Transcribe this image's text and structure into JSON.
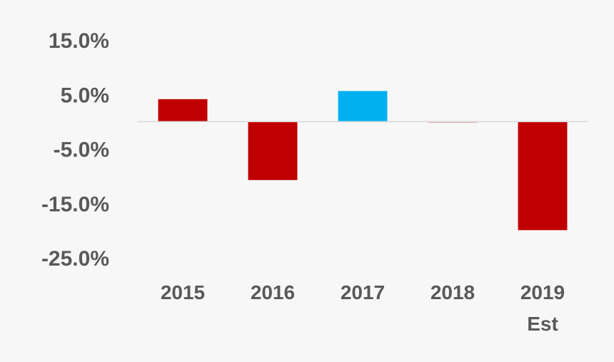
{
  "chart_data": {
    "type": "bar",
    "title": "",
    "xlabel": "",
    "ylabel": "",
    "categories": [
      [
        "2015"
      ],
      [
        "2016"
      ],
      [
        "2017"
      ],
      [
        "2018"
      ],
      [
        "2019",
        "Est"
      ]
    ],
    "values": [
      4.2,
      -10.8,
      5.7,
      -0.2,
      -20.0
    ],
    "bar_colors": [
      "#c00000",
      "#c00000",
      "#00b0f0",
      "#c00000",
      "#c00000"
    ],
    "y_ticks": [
      15.0,
      5.0,
      -5.0,
      -15.0,
      -25.0
    ],
    "y_tick_labels": [
      "15.0%",
      "5.0%",
      "-5.0%",
      "-15.0%",
      "-25.0%"
    ],
    "ylim": [
      -25.0,
      15.0
    ],
    "grid": false,
    "legend": "none",
    "zero_line_color": "#d9d9d9",
    "text_color": "#595959"
  }
}
